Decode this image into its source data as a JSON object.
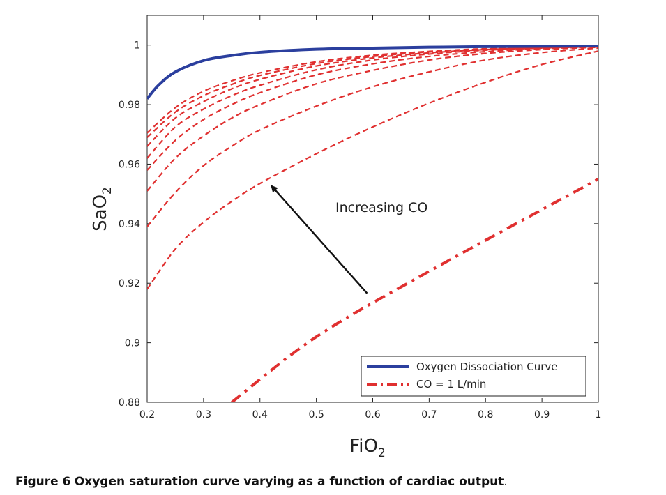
{
  "caption": {
    "label": "Figure 6",
    "text": "Oxygen saturation curve varying as a function of cardiac output",
    "end": "."
  },
  "chart_data": {
    "type": "line",
    "xlabel": "FiO",
    "xlabel_sub": "2",
    "ylabel": "SaO",
    "ylabel_sub": "2",
    "xlim": [
      0.2,
      1.0
    ],
    "ylim": [
      0.88,
      1.01
    ],
    "xticks": [
      "0.2",
      "0.3",
      "0.4",
      "0.5",
      "0.6",
      "0.7",
      "0.8",
      "0.9",
      "1"
    ],
    "yticks": [
      "0.88",
      "0.9",
      "0.92",
      "0.94",
      "0.96",
      "0.98",
      "1"
    ],
    "grid": false,
    "legend_position": "bottom-right",
    "annotation": {
      "text": "Increasing CO",
      "arrow_from": [
        0.59,
        0.9166
      ],
      "arrow_to": [
        0.42,
        0.9528
      ]
    },
    "colors": {
      "ocd": "#2b3f9e",
      "co": "#e03030"
    },
    "legend": [
      {
        "label": "Oxygen Dissociation Curve",
        "style": "solid",
        "color": "#2b3f9e"
      },
      {
        "label": "CO = 1 L/min",
        "style": "dashdot",
        "color": "#e03030"
      }
    ],
    "series": [
      {
        "name": "Oxygen Dissociation Curve",
        "style": "solid",
        "color": "#2b3f9e",
        "x": [
          0.2,
          0.22,
          0.25,
          0.3,
          0.35,
          0.4,
          0.5,
          0.6,
          0.7,
          0.8,
          0.9,
          1.0
        ],
        "y": [
          0.982,
          0.9865,
          0.991,
          0.9948,
          0.9965,
          0.9976,
          0.9986,
          0.999,
          0.9993,
          0.9995,
          0.9996,
          0.9997
        ]
      },
      {
        "name": "CO = 1 L/min",
        "style": "dashdot",
        "color": "#e03030",
        "x": [
          0.35,
          0.5,
          0.7,
          1.0
        ],
        "y": [
          0.88,
          0.902,
          0.924,
          0.955
        ]
      },
      {
        "style": "dashed",
        "color": "#e03030",
        "x": [
          0.2,
          0.25,
          0.3,
          0.35,
          0.4,
          0.5,
          0.6,
          0.7,
          0.8,
          0.9,
          1.0
        ],
        "y": [
          0.918,
          0.9315,
          0.9405,
          0.9475,
          0.9535,
          0.9635,
          0.9725,
          0.9805,
          0.9875,
          0.9935,
          0.998
        ]
      },
      {
        "style": "dashed",
        "color": "#e03030",
        "x": [
          0.2,
          0.25,
          0.3,
          0.35,
          0.4,
          0.5,
          0.6,
          0.7,
          0.8,
          0.9,
          1.0
        ],
        "y": [
          0.939,
          0.9505,
          0.9595,
          0.966,
          0.9715,
          0.9795,
          0.986,
          0.991,
          0.995,
          0.9975,
          0.999
        ]
      },
      {
        "style": "dashed",
        "color": "#e03030",
        "x": [
          0.2,
          0.25,
          0.3,
          0.35,
          0.4,
          0.5,
          0.6,
          0.7,
          0.8,
          0.9,
          1.0
        ],
        "y": [
          0.951,
          0.962,
          0.9695,
          0.9755,
          0.98,
          0.987,
          0.9915,
          0.995,
          0.9972,
          0.9985,
          0.9993
        ]
      },
      {
        "style": "dashed",
        "color": "#e03030",
        "x": [
          0.2,
          0.25,
          0.3,
          0.35,
          0.4,
          0.5,
          0.6,
          0.7,
          0.8,
          0.9,
          1.0
        ],
        "y": [
          0.958,
          0.968,
          0.975,
          0.98,
          0.984,
          0.99,
          0.9937,
          0.9962,
          0.9978,
          0.9988,
          0.9994
        ]
      },
      {
        "style": "dashed",
        "color": "#e03030",
        "x": [
          0.2,
          0.25,
          0.3,
          0.35,
          0.4,
          0.5,
          0.6,
          0.7,
          0.8,
          0.9,
          1.0
        ],
        "y": [
          0.962,
          0.9725,
          0.9785,
          0.983,
          0.9865,
          0.9917,
          0.995,
          0.997,
          0.9983,
          0.999,
          0.9995
        ]
      },
      {
        "style": "dashed",
        "color": "#e03030",
        "x": [
          0.2,
          0.25,
          0.3,
          0.35,
          0.4,
          0.5,
          0.6,
          0.7,
          0.8,
          0.9,
          1.0
        ],
        "y": [
          0.966,
          0.9755,
          0.981,
          0.9853,
          0.9885,
          0.993,
          0.9957,
          0.9974,
          0.9985,
          0.9991,
          0.9995
        ]
      },
      {
        "style": "dashed",
        "color": "#e03030",
        "x": [
          0.2,
          0.25,
          0.3,
          0.35,
          0.4,
          0.5,
          0.6,
          0.7,
          0.8,
          0.9,
          1.0
        ],
        "y": [
          0.969,
          0.9775,
          0.983,
          0.9868,
          0.9898,
          0.9938,
          0.9962,
          0.9977,
          0.9987,
          0.9992,
          0.9996
        ]
      },
      {
        "style": "dashed",
        "color": "#e03030",
        "x": [
          0.2,
          0.25,
          0.3,
          0.35,
          0.4,
          0.5,
          0.6,
          0.7,
          0.8,
          0.9,
          1.0
        ],
        "y": [
          0.9705,
          0.979,
          0.9845,
          0.988,
          0.9907,
          0.9944,
          0.9966,
          0.9979,
          0.9988,
          0.9993,
          0.9996
        ]
      }
    ]
  }
}
